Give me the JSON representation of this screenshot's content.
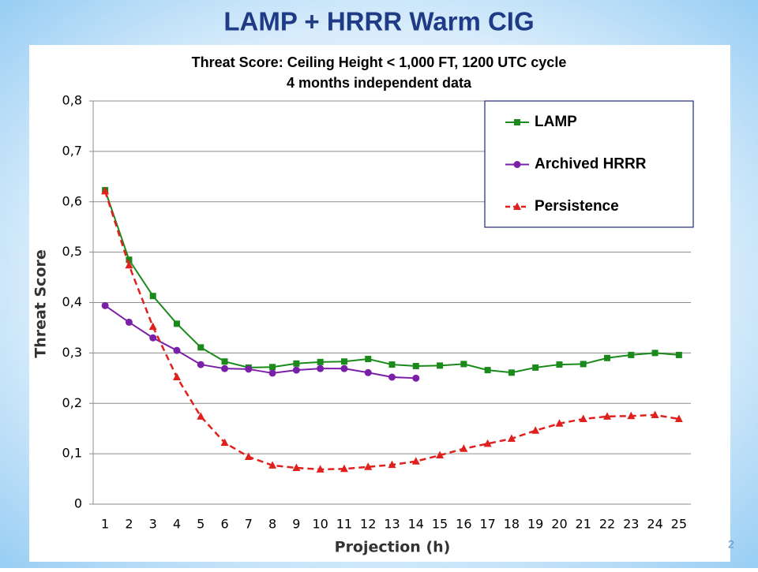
{
  "slide_title": "LAMP + HRRR Warm CIG",
  "slide_number": "2",
  "chart_data": {
    "type": "line",
    "title": "Threat Score: Ceiling Height < 1,000 FT, 1200 UTC cycle",
    "subtitle": "4 months independent data",
    "x_label": "Projection (h)",
    "y_label": "Threat Score",
    "categories": [
      "1",
      "2",
      "3",
      "4",
      "5",
      "6",
      "7",
      "8",
      "9",
      "10",
      "11",
      "12",
      "13",
      "14",
      "15",
      "16",
      "17",
      "18",
      "19",
      "20",
      "21",
      "22",
      "23",
      "24",
      "25"
    ],
    "series": [
      {
        "name": "LAMP",
        "color": "#1a8a1a",
        "marker": "square",
        "dashed": false,
        "values": [
          0.623,
          0.485,
          0.413,
          0.358,
          0.311,
          0.283,
          0.271,
          0.272,
          0.279,
          0.282,
          0.283,
          0.288,
          0.277,
          0.274,
          0.275,
          0.278,
          0.266,
          0.261,
          0.271,
          0.277,
          0.278,
          0.29,
          0.296,
          0.3,
          0.296
        ]
      },
      {
        "name": "Archived HRRR",
        "color": "#7a1fa8",
        "marker": "circle",
        "dashed": false,
        "values": [
          0.394,
          0.361,
          0.33,
          0.305,
          0.277,
          0.269,
          0.268,
          0.26,
          0.266,
          0.269,
          0.269,
          0.261,
          0.252,
          0.25,
          null,
          null,
          null,
          null,
          null,
          null,
          null,
          null,
          null,
          null,
          null
        ]
      },
      {
        "name": "Persistence",
        "color": "#e0201c",
        "marker": "triangle",
        "dashed": true,
        "values": [
          0.621,
          0.474,
          0.352,
          0.252,
          0.174,
          0.122,
          0.094,
          0.077,
          0.072,
          0.069,
          0.07,
          0.074,
          0.078,
          0.085,
          0.097,
          0.11,
          0.12,
          0.13,
          0.146,
          0.16,
          0.169,
          0.174,
          0.175,
          0.177,
          0.169
        ]
      }
    ],
    "ylim": [
      0,
      0.8
    ],
    "yticks": [
      0,
      {
        "value": 0.1,
        "label": "0,1"
      },
      {
        "value": 0.2,
        "label": "0,2"
      },
      {
        "value": 0.3,
        "label": "0,3"
      },
      {
        "value": 0.4,
        "label": "0,4"
      },
      {
        "value": 0.5,
        "label": "0,5"
      },
      {
        "value": 0.6,
        "label": "0,6"
      },
      {
        "value": 0.7,
        "label": "0,7"
      },
      {
        "value": 0.8,
        "label": "0,8"
      }
    ],
    "grid": true,
    "legend": "top-right"
  }
}
